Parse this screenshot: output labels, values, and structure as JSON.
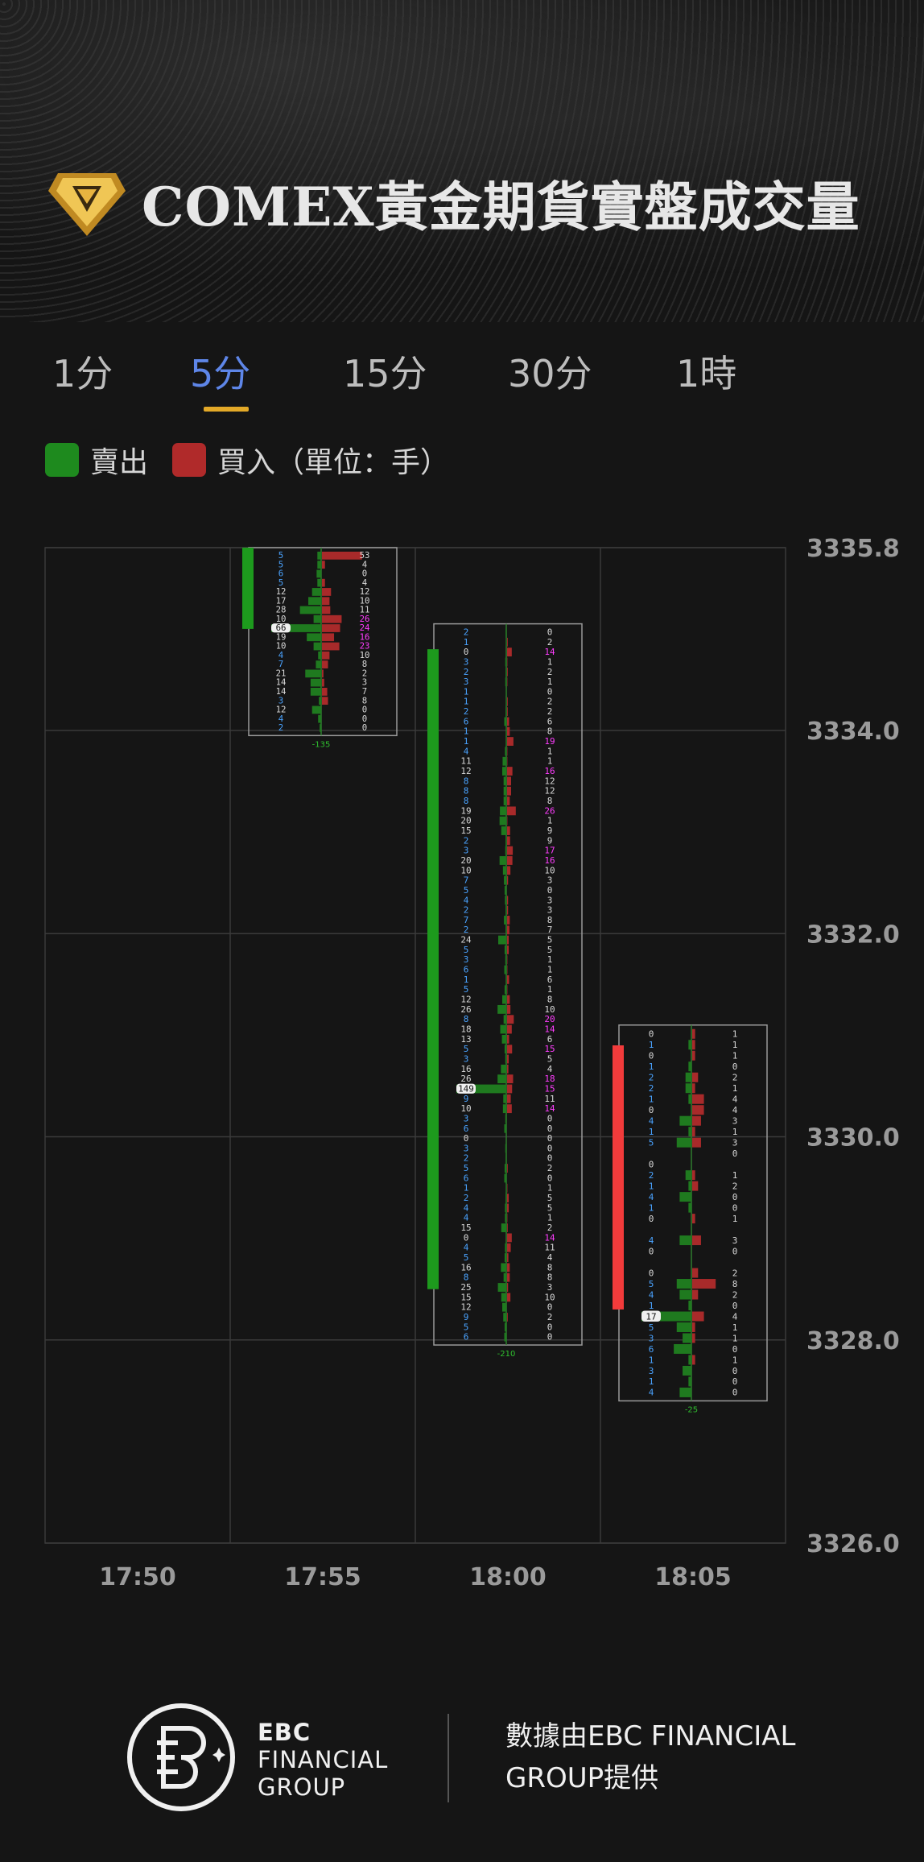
{
  "header": {
    "title": "COMEX黃金期貨實盤成交量",
    "logo_icon": "gold-diamond-icon"
  },
  "tabs": [
    {
      "label": "1分",
      "active": false
    },
    {
      "label": "5分",
      "active": true
    },
    {
      "label": "15分",
      "active": false
    },
    {
      "label": "30分",
      "active": false
    },
    {
      "label": "1時",
      "active": false
    }
  ],
  "legend": {
    "sell_label": "賣出",
    "buy_label": "買入",
    "unit_note": "（單位：手）",
    "sell_color": "#1e8a1e",
    "buy_color": "#b02a2a"
  },
  "chart_data": {
    "type": "footprint",
    "y_ticks": [
      "3335.8",
      "3334.0",
      "3332.0",
      "3330.0",
      "3328.0",
      "3326.0"
    ],
    "x_ticks": [
      "17:50",
      "17:55",
      "18:00",
      "18:05"
    ],
    "ylim": [
      3326.0,
      3335.8
    ],
    "grid": true,
    "bars": [
      {
        "time": "17:55",
        "direction": "down",
        "body": [
          3335.0,
          3335.8
        ],
        "box": [
          3333.95,
          3335.8
        ],
        "delta": "-135",
        "poc_value": "66",
        "sell": [
          5,
          5,
          6,
          5,
          12,
          17,
          28,
          10,
          66,
          19,
          10,
          4,
          7,
          21,
          14,
          14,
          3,
          12,
          4,
          2
        ],
        "buy": [
          53,
          4,
          0,
          4,
          12,
          10,
          11,
          26,
          24,
          16,
          23,
          10,
          8,
          2,
          3,
          7,
          8,
          0,
          0,
          0
        ]
      },
      {
        "time": "18:00",
        "direction": "down",
        "body": [
          3328.5,
          3334.8
        ],
        "box": [
          3327.95,
          3335.05
        ],
        "delta": "-210",
        "poc_value": "149",
        "sell": [
          2,
          1,
          0,
          3,
          2,
          3,
          1,
          1,
          2,
          6,
          1,
          1,
          4,
          11,
          12,
          8,
          8,
          8,
          19,
          20,
          15,
          2,
          3,
          20,
          10,
          7,
          5,
          4,
          2,
          7,
          2,
          24,
          5,
          3,
          6,
          1,
          5,
          12,
          26,
          8,
          18,
          13,
          5,
          3,
          16,
          26,
          149,
          9,
          10,
          3,
          6,
          0,
          3,
          2,
          5,
          6,
          1,
          2,
          4,
          4,
          15,
          0,
          4,
          5,
          16,
          8,
          25,
          15,
          12,
          9,
          5,
          6
        ],
        "buy": [
          0,
          2,
          14,
          1,
          2,
          1,
          0,
          2,
          2,
          6,
          8,
          19,
          1,
          1,
          16,
          12,
          12,
          8,
          26,
          1,
          9,
          9,
          17,
          16,
          10,
          3,
          0,
          3,
          3,
          8,
          7,
          5,
          5,
          1,
          1,
          6,
          1,
          8,
          10,
          20,
          14,
          6,
          15,
          5,
          4,
          18,
          15,
          11,
          14,
          0,
          0,
          0,
          0,
          0,
          2,
          0,
          1,
          5,
          5,
          1,
          2,
          14,
          11,
          4,
          8,
          8,
          3,
          10,
          0,
          2,
          0,
          0
        ]
      },
      {
        "time": "18:05",
        "direction": "up",
        "body": [
          3328.3,
          3330.9
        ],
        "box": [
          3327.4,
          3331.1
        ],
        "delta": "-25",
        "poc_value": "17",
        "sell": [
          0,
          1,
          0,
          1,
          2,
          2,
          1,
          0,
          4,
          1,
          5,
          "",
          0,
          2,
          1,
          4,
          1,
          0,
          "",
          4,
          0,
          "",
          0,
          5,
          4,
          1,
          17,
          5,
          3,
          6,
          1,
          3,
          1,
          4
        ],
        "buy": [
          1,
          1,
          1,
          0,
          2,
          1,
          4,
          4,
          3,
          1,
          3,
          0,
          "",
          1,
          2,
          0,
          0,
          1,
          "",
          3,
          0,
          "",
          2,
          8,
          2,
          0,
          4,
          1,
          1,
          0,
          1,
          0,
          0,
          0
        ]
      }
    ]
  },
  "footer": {
    "brand_line1": "EBC",
    "brand_line2": "FINANCIAL",
    "brand_line3": "GROUP",
    "source_line1": "數據由EBC FINANCIAL",
    "source_line2": "GROUP提供",
    "logo_icon": "ebc-logo-icon"
  }
}
